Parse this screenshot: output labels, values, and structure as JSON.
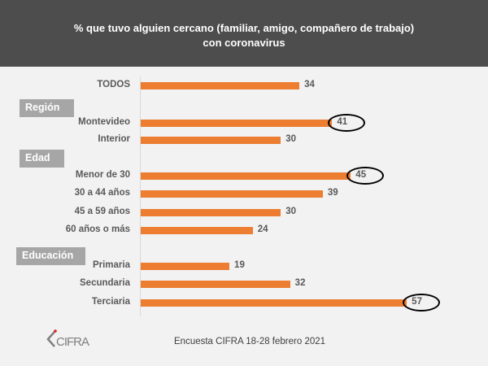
{
  "header": {
    "title_line1": "% que tuvo alguien cercano (familiar, amigo, compañero de trabajo)",
    "title_line2": "con coronavirus"
  },
  "chart_data": {
    "type": "bar",
    "orientation": "horizontal",
    "title": "% que tuvo alguien cercano (familiar, amigo, compañero de trabajo) con coronavirus",
    "xlim": [
      0,
      60
    ],
    "bar_color": "#ed7d31",
    "groups": [
      {
        "name": "",
        "items": [
          {
            "label": "TODOS",
            "value": 34,
            "highlight": false
          }
        ]
      },
      {
        "name": "Región",
        "items": [
          {
            "label": "Montevideo",
            "value": 41,
            "highlight": true
          },
          {
            "label": "Interior",
            "value": 30,
            "highlight": false
          }
        ]
      },
      {
        "name": "Edad",
        "items": [
          {
            "label": "Menor de 30",
            "value": 45,
            "highlight": true
          },
          {
            "label": "30 a 44 años",
            "value": 39,
            "highlight": false
          },
          {
            "label": "45 a 59 años",
            "value": 30,
            "highlight": false
          },
          {
            "label": "60 años o más",
            "value": 24,
            "highlight": false
          }
        ]
      },
      {
        "name": "Educación",
        "items": [
          {
            "label": "Primaria",
            "value": 19,
            "highlight": false
          },
          {
            "label": "Secundaria",
            "value": 32,
            "highlight": false
          },
          {
            "label": "Terciaria",
            "value": 57,
            "highlight": true
          }
        ]
      }
    ]
  },
  "footer": {
    "source": "Encuesta CIFRA  18-28 febrero  2021",
    "logo_text": "CIFRA"
  }
}
